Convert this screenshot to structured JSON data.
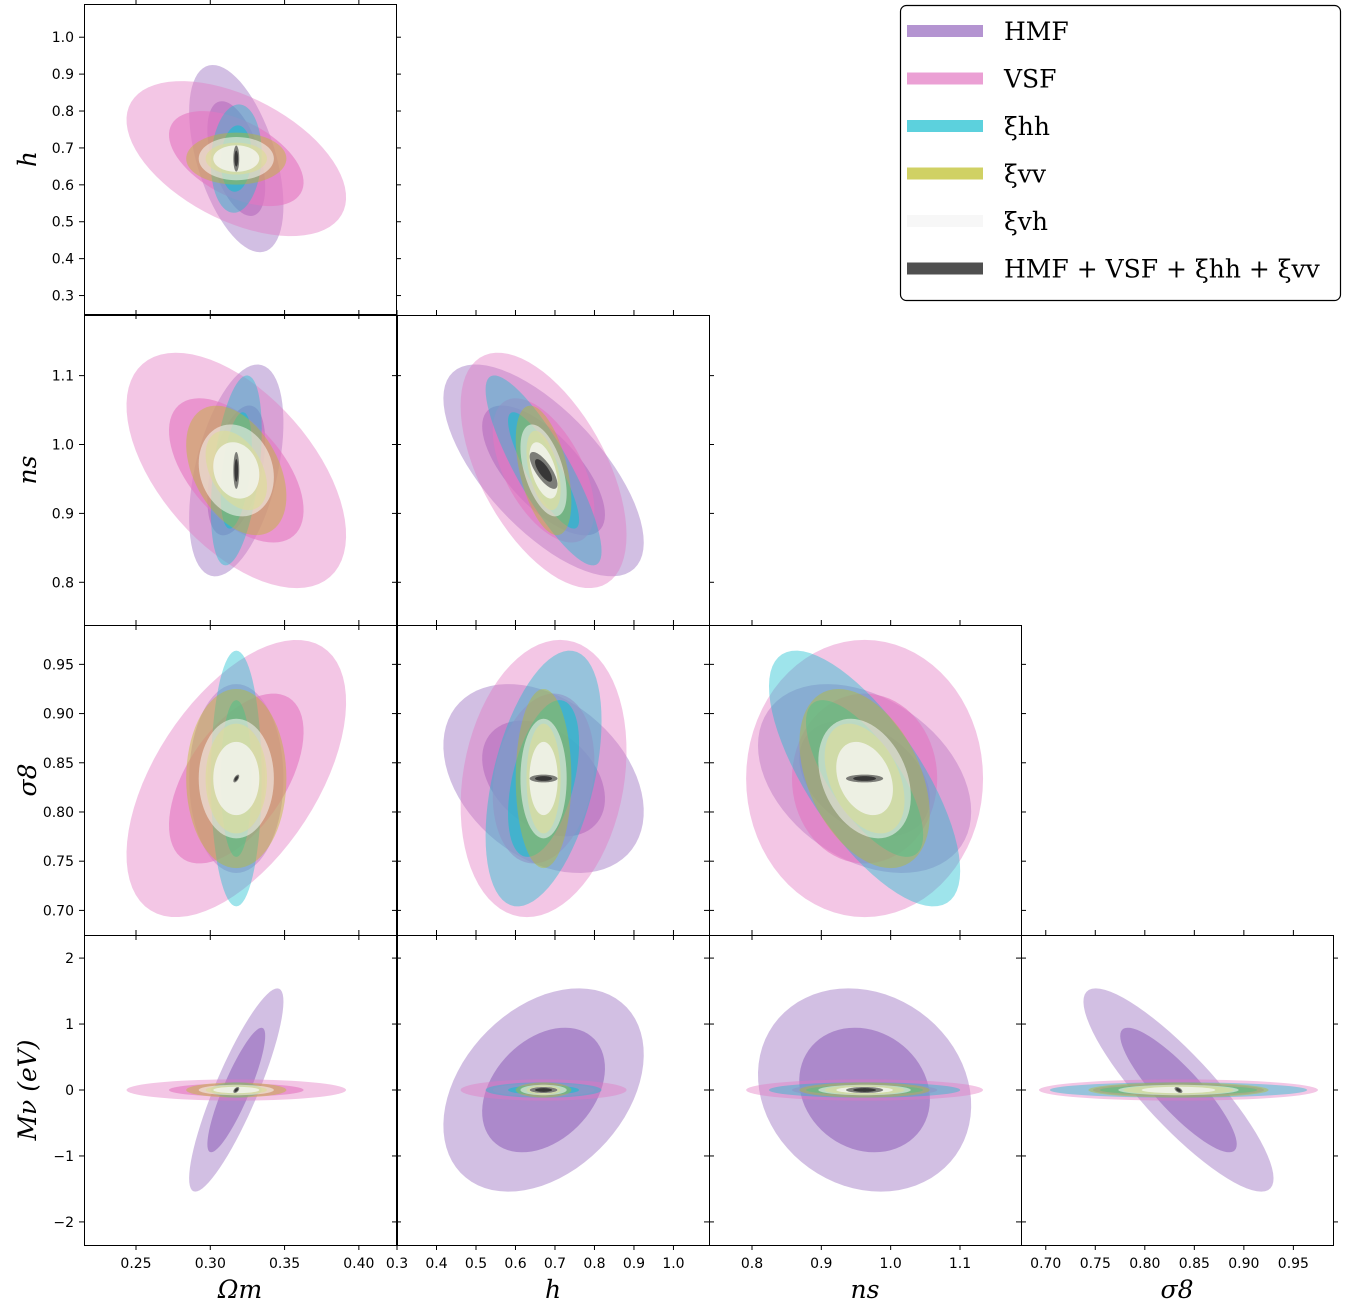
{
  "chart_data": {
    "type": "scatter",
    "kind": "Fisher forecast triangle (corner) plot, 1-sigma and 2-sigma confidence ellipses",
    "parameters": [
      {
        "id": "Om",
        "label": "Ωm",
        "fiducial": 0.3175,
        "ticks": [
          0.25,
          0.3,
          0.35,
          0.4
        ],
        "tick_labels": [
          "0.25",
          "0.30",
          "0.35",
          "0.40"
        ],
        "range": [
          0.215,
          0.425
        ]
      },
      {
        "id": "h",
        "label": "h",
        "fiducial": 0.6711,
        "ticks": [
          0.3,
          0.4,
          0.5,
          0.6,
          0.7,
          0.8,
          0.9,
          1.0
        ],
        "tick_labels": [
          "0.3",
          "0.4",
          "0.5",
          "0.6",
          "0.7",
          "0.8",
          "0.9",
          "1.0"
        ],
        "range": [
          0.25,
          1.09
        ]
      },
      {
        "id": "ns",
        "label": "ns",
        "fiducial": 0.9624,
        "ticks": [
          0.8,
          0.9,
          1.0,
          1.1
        ],
        "tick_labels": [
          "0.8",
          "0.9",
          "1.0",
          "1.1"
        ],
        "range": [
          0.738,
          1.188
        ]
      },
      {
        "id": "s8",
        "label": "σ8",
        "fiducial": 0.834,
        "ticks": [
          0.7,
          0.75,
          0.8,
          0.85,
          0.9,
          0.95
        ],
        "tick_labels": [
          "0.70",
          "0.75",
          "0.80",
          "0.85",
          "0.90",
          "0.95"
        ],
        "range": [
          0.675,
          0.99
        ]
      },
      {
        "id": "Mnu",
        "label": "Mν (eV)",
        "fiducial": 0.0,
        "ticks": [
          -2,
          -1,
          0,
          1,
          2
        ],
        "tick_labels": [
          "−2",
          "−1",
          "0",
          "1",
          "2"
        ],
        "range": [
          -2.35,
          2.35
        ]
      }
    ],
    "axis_ranges": {
      "column_x": {
        "Om": [
          0.215,
          0.425
        ],
        "h": [
          0.3,
          1.09
        ],
        "ns": [
          0.738,
          1.188
        ],
        "s8": [
          0.675,
          0.99
        ]
      },
      "row_y": {
        "h": [
          0.25,
          1.09
        ],
        "ns": [
          0.738,
          1.188
        ],
        "s8": [
          0.675,
          0.99
        ],
        "Mnu": [
          -2.35,
          2.35
        ]
      }
    },
    "series": [
      {
        "name": "HMF",
        "color": "#9467bd",
        "sigma": {
          "Om": 0.0128,
          "h": 0.1023,
          "ns": 0.062,
          "s8": 0.0387,
          "Mnu": 0.6214
        },
        "corr": {
          "Om_h": -0.5,
          "Om_ns": 0.45,
          "Om_s8": 0.0,
          "Om_Mnu": 0.87,
          "h_ns": -0.68,
          "h_s8": -0.35,
          "h_Mnu": 0.35,
          "ns_s8": -0.35,
          "ns_Mnu": -0.15,
          "s8_Mnu": -0.87
        }
      },
      {
        "name": "VSF",
        "color": "#e377c2",
        "sigma": {
          "Om": 0.0298,
          "h": 0.0847,
          "ns": 0.0689,
          "s8": 0.0568,
          "Mnu": 0.0651
        },
        "corr": {
          "Om_h": -0.5,
          "Om_ns": -0.55,
          "Om_s8": 0.55,
          "Om_Mnu": 0.0,
          "h_ns": -0.55,
          "h_s8": 0.2,
          "h_Mnu": 0.0,
          "ns_s8": 0.0,
          "ns_Mnu": 0.0,
          "s8_Mnu": 0.0
        }
      },
      {
        "name": "ξhh",
        "color": "#17becf",
        "sigma": {
          "Om": 0.0069,
          "h": 0.0592,
          "ns": 0.0556,
          "s8": 0.0524,
          "Mnu": 0.0468
        },
        "corr": {
          "Om_h": 0.1,
          "Om_ns": 0.42,
          "Om_s8": 0.0,
          "Om_Mnu": 0.0,
          "h_ns": -0.85,
          "h_s8": 0.45,
          "h_Mnu": 0.0,
          "ns_s8": -0.72,
          "ns_Mnu": 0.0,
          "s8_Mnu": 0.0
        }
      },
      {
        "name": "ξvv",
        "color": "#bcbd22",
        "sigma": {
          "Om": 0.0136,
          "h": 0.0284,
          "ns": 0.0379,
          "s8": 0.0367,
          "Mnu": 0.0458
        },
        "corr": {
          "Om_h": 0.0,
          "Om_ns": -0.4,
          "Om_s8": 0.0,
          "Om_Mnu": 0.0,
          "h_ns": -0.48,
          "h_s8": 0.0,
          "h_Mnu": 0.0,
          "ns_s8": -0.4,
          "ns_Mnu": 0.0,
          "s8_Mnu": 0.0
        }
      },
      {
        "name": "ξvh",
        "color": "#f7f7f7",
        "sigma": {
          "Om": 0.0102,
          "h": 0.0236,
          "ns": 0.0269,
          "s8": 0.0245,
          "Mnu": 0.0319
        },
        "corr": {
          "Om_h": 0.0,
          "Om_ns": -0.15,
          "Om_s8": 0.0,
          "Om_Mnu": 0.0,
          "h_ns": -0.5,
          "h_s8": 0.0,
          "h_Mnu": 0.0,
          "ns_s8": -0.3,
          "ns_Mnu": 0.0,
          "s8_Mnu": 0.0
        }
      },
      {
        "name": "HMF + VSF + ξhh + ξvv",
        "color": "#303030",
        "sigma": {
          "Om": 0.0008,
          "h": 0.0142,
          "ns": 0.0108,
          "s8": 0.0016,
          "Mnu": 0.0183
        },
        "corr": {
          "Om_h": 0.0,
          "Om_ns": 0.0,
          "Om_s8": 0.6,
          "Om_Mnu": 0.5,
          "h_ns": -0.75,
          "h_s8": 0.0,
          "h_Mnu": 0.0,
          "ns_s8": 0.0,
          "ns_Mnu": 0.0,
          "s8_Mnu": -0.5
        }
      }
    ],
    "legend": {
      "placement": "top-right",
      "entries": [
        "HMF",
        "VSF",
        "ξhh",
        "ξvv",
        "ξvh",
        "HMF + VSF + ξhh + ξvv"
      ]
    },
    "grid": false
  }
}
